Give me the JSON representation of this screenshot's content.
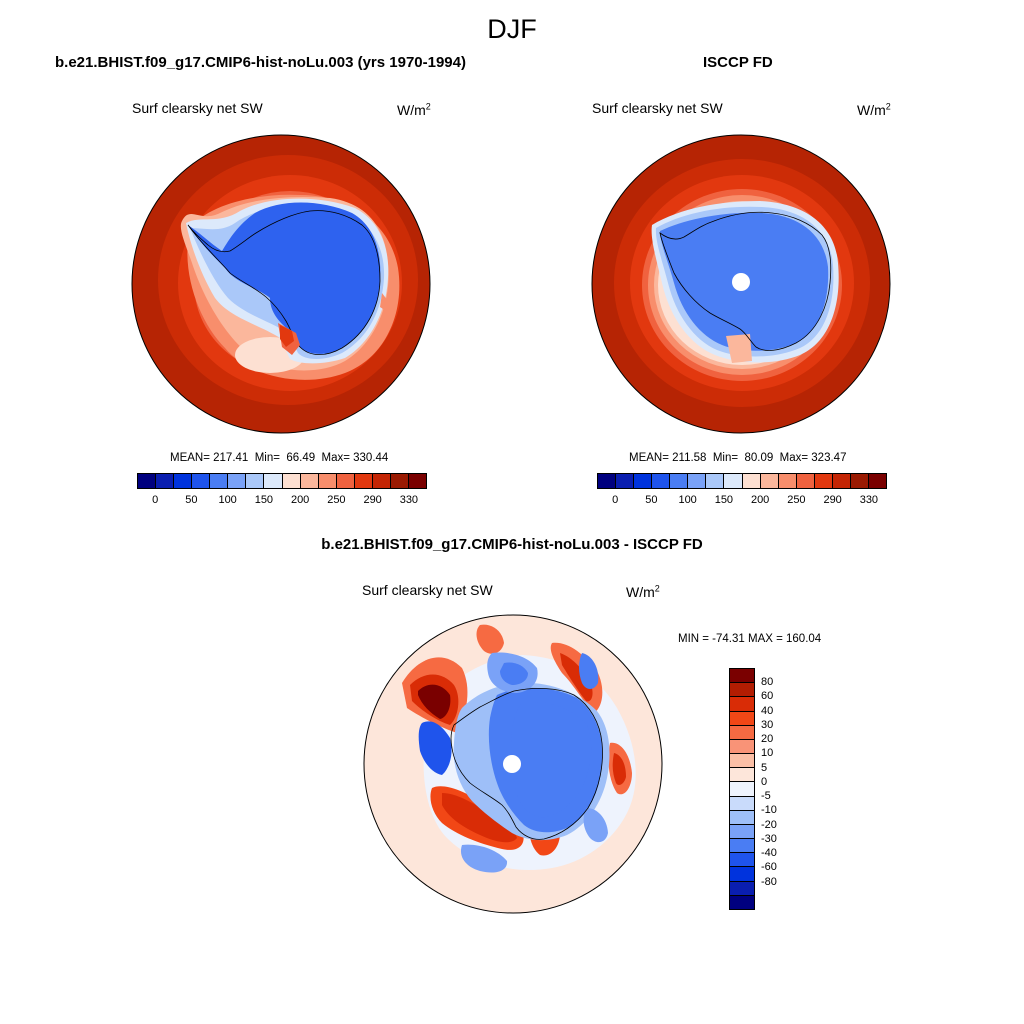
{
  "figure": {
    "title": "DJF"
  },
  "panels": [
    {
      "case_title": "b.e21.BHIST.f09_g17.CMIP6-hist-noLu.003 (yrs 1970-1994)",
      "variable": "Surf clearsky net SW",
      "units_base": "W/m",
      "units_exp": "2",
      "stats": "MEAN= 217.41  Min=  66.49  Max= 330.44",
      "fields": {
        "ocean_outer": "#b62404",
        "ocean_mid": "#e2380f",
        "ocean_inner": "#f88e6c",
        "sea_ice": "#a9c7f5",
        "continent": "#2e62ef",
        "pole_hole": false
      }
    },
    {
      "case_title": "ISCCP FD",
      "variable": "Surf clearsky net SW",
      "units_base": "W/m",
      "units_exp": "2",
      "stats": "MEAN= 211.58  Min=  80.09  Max= 323.47",
      "fields": {
        "ocean_outer": "#b62404",
        "ocean_mid": "#e2380f",
        "ocean_inner": "#f88e6c",
        "sea_ice": "#a9c7f5",
        "continent": "#4a7df3",
        "pole_hole": true
      }
    }
  ],
  "abs_colorbar": {
    "colors": [
      "#00007f",
      "#0a1eb0",
      "#0033dd",
      "#1f54ec",
      "#4a7df3",
      "#7aa2f7",
      "#aac8f9",
      "#dce9fb",
      "#fde0d2",
      "#fbb79c",
      "#f88e6c",
      "#f0623f",
      "#e2380f",
      "#c42504",
      "#9a1a02",
      "#7a0000"
    ],
    "labels": [
      "0",
      "50",
      "100",
      "150",
      "200",
      "250",
      "290",
      "330"
    ]
  },
  "diff_panel": {
    "case_title": "b.e21.BHIST.f09_g17.CMIP6-hist-noLu.003 - ISCCP FD",
    "variable": "Surf clearsky net SW",
    "units_base": "W/m",
    "units_exp": "2",
    "stats": "MIN = -74.31 MAX = 160.04"
  },
  "diff_colorbar": {
    "colors": [
      "#7a0000",
      "#b21d02",
      "#d92c06",
      "#f24716",
      "#f66a42",
      "#f99377",
      "#fbbfa6",
      "#fde6da",
      "#eef3fd",
      "#c9dbfb",
      "#9ebff8",
      "#7aa2f7",
      "#4a7df3",
      "#1f54ec",
      "#0033dd",
      "#0a1eb0",
      "#00007f"
    ],
    "labels": [
      "80",
      "60",
      "40",
      "30",
      "20",
      "10",
      "5",
      "0",
      "-5",
      "-10",
      "-20",
      "-30",
      "-40",
      "-60",
      "-80"
    ]
  }
}
